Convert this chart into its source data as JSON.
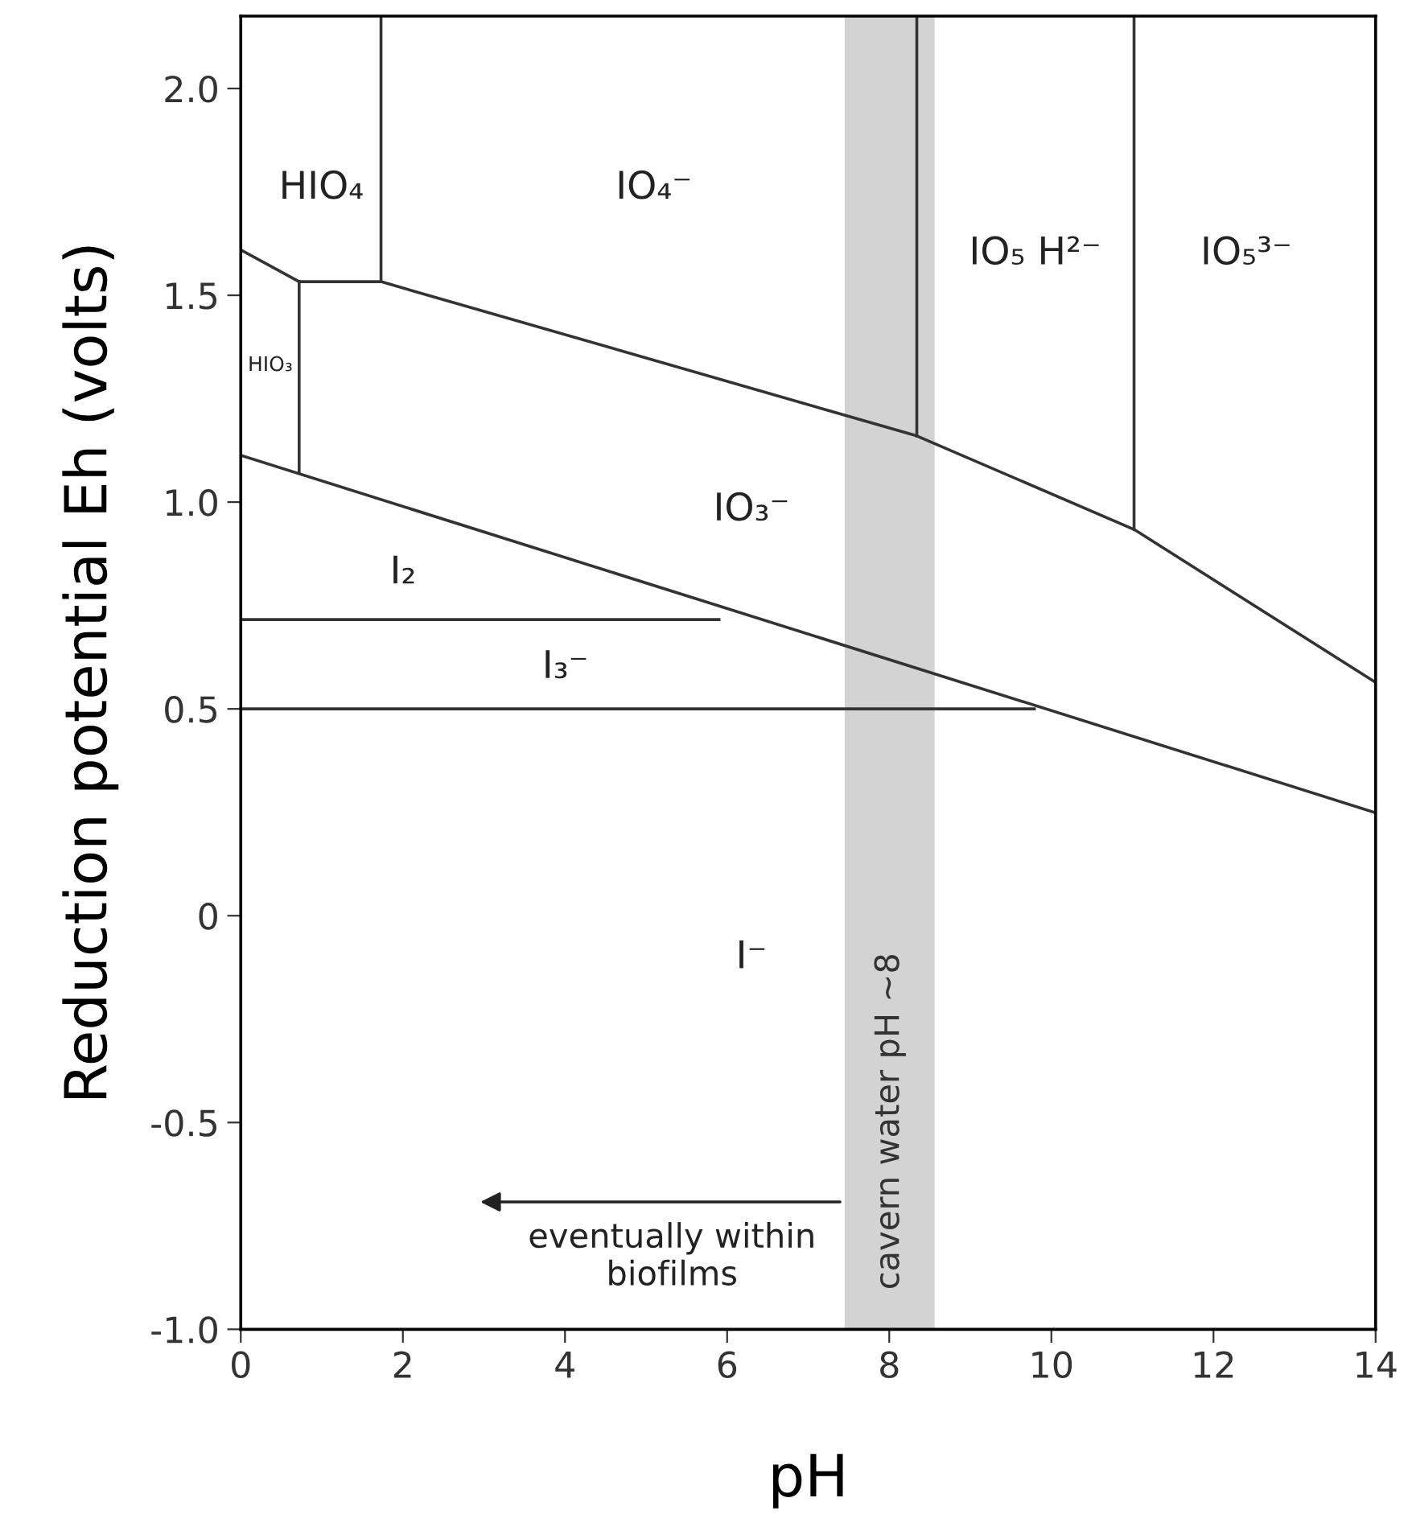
{
  "chart_data": {
    "type": "line",
    "xlabel": "pH",
    "ylabel": "Reduction potential Eh (volts)",
    "xlim": [
      0,
      14
    ],
    "ylim": [
      -1.0,
      2.175
    ],
    "xticks": [
      0,
      2,
      4,
      6,
      8,
      10,
      12,
      14
    ],
    "yticks": [
      {
        "value": -1.0,
        "label": "-1.0"
      },
      {
        "value": -0.5,
        "label": "-0.5"
      },
      {
        "value": 0,
        "label": "0"
      },
      {
        "value": 0.5,
        "label": "0.5"
      },
      {
        "value": 1.0,
        "label": "1.0"
      },
      {
        "value": 1.5,
        "label": "1.5"
      },
      {
        "value": 2.0,
        "label": "2.0"
      }
    ],
    "grid": false,
    "marker": "none",
    "line_style": "solid",
    "series": [
      {
        "color": "#333333",
        "x": [
          0,
          0.72,
          1.73,
          8.34,
          11.02,
          14
        ],
        "values": [
          1.61,
          1.533,
          1.533,
          1.16,
          0.934,
          0.564
        ]
      },
      {
        "color": "#333333",
        "x": [
          1.73,
          1.73
        ],
        "values": [
          1.533,
          2.175
        ]
      },
      {
        "color": "#333333",
        "x": [
          8.34,
          8.34
        ],
        "values": [
          1.16,
          2.175
        ]
      },
      {
        "color": "#333333",
        "x": [
          11.02,
          11.02
        ],
        "values": [
          0.934,
          2.175
        ]
      },
      {
        "color": "#333333",
        "x": [
          0.72,
          0.72
        ],
        "values": [
          1.533,
          1.07
        ]
      },
      {
        "color": "#333333",
        "x": [
          0,
          14
        ],
        "values": [
          1.113,
          0.249
        ]
      },
      {
        "color": "#333333",
        "x": [
          0,
          5.9
        ],
        "values": [
          0.716,
          0.716
        ]
      },
      {
        "color": "#333333",
        "x": [
          0,
          9.79
        ],
        "values": [
          0.5,
          0.5
        ]
      }
    ],
    "bands": [
      {
        "axis": "x",
        "from": 7.45,
        "to": 8.56,
        "label": "cavern water pH ~8",
        "color": "#d3d3d3"
      }
    ],
    "annotations": [
      "HIO₄",
      "IO₄⁻",
      "IO₅ H²⁻",
      "IO₅³⁻",
      "HIO₃",
      "IO₃⁻",
      "I₂",
      "I₃⁻",
      "I⁻",
      "eventually within\nbiofilms"
    ]
  }
}
